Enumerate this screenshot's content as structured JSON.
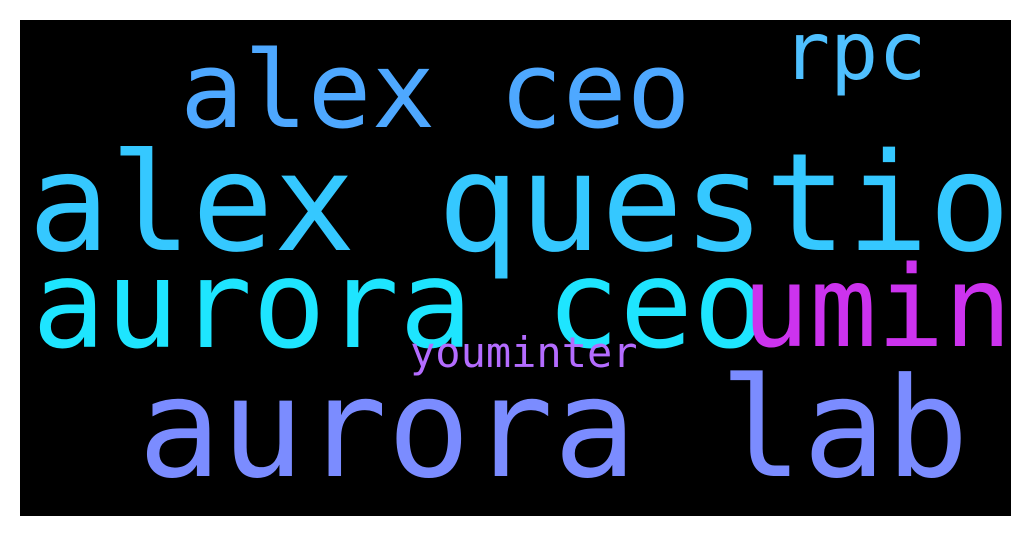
{
  "wordcloud": {
    "background": "#000000",
    "words": [
      {
        "text": "alex ceo",
        "color": "#4ea8ff"
      },
      {
        "text": "rpc",
        "color": "#4fc0ff"
      },
      {
        "text": "alex question",
        "color": "#35c8ff"
      },
      {
        "text": "aurora ceo",
        "color": "#1ee5ff"
      },
      {
        "text": "umint",
        "color": "#cc33ee"
      },
      {
        "text": "youminter",
        "color": "#b46cff"
      },
      {
        "text": "aurora lab",
        "color": "#7b8cff"
      }
    ]
  }
}
